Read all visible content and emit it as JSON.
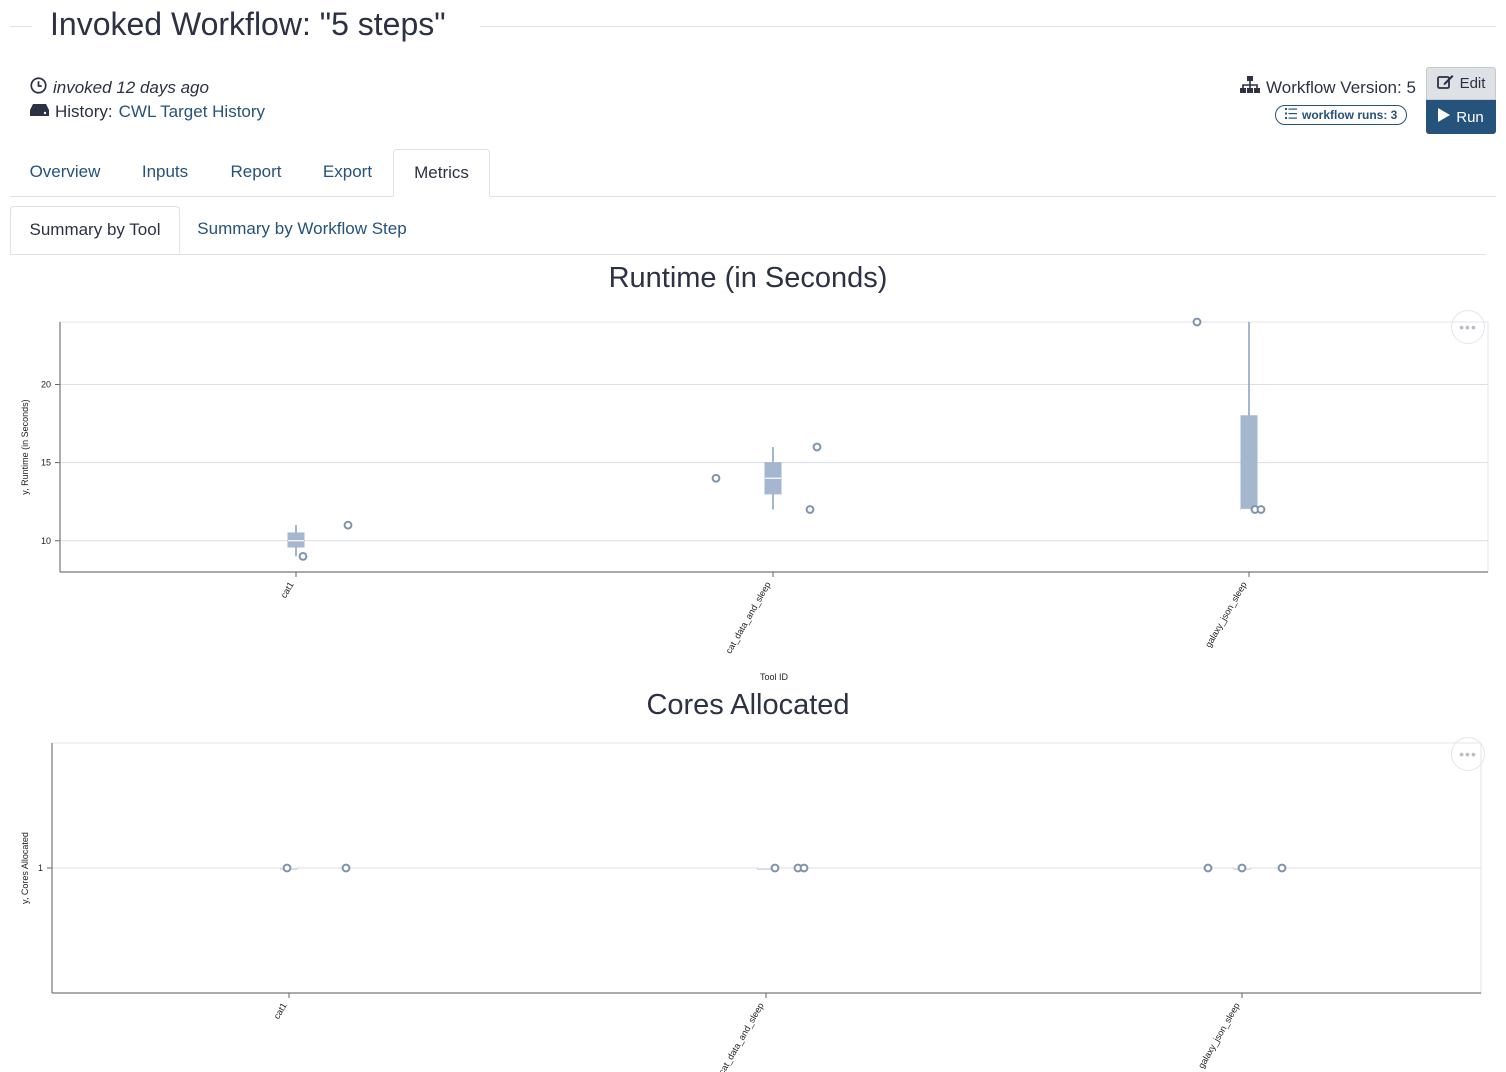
{
  "header": {
    "title": "Invoked Workflow: \"5 steps\"",
    "invoked": "invoked 12 days ago",
    "history_label": "History:",
    "history_link": "CWL Target History",
    "workflow_version": "Workflow Version: 5",
    "workflow_runs": "workflow runs: 3",
    "edit_label": "Edit",
    "run_label": "Run"
  },
  "tabs": [
    {
      "label": "Overview"
    },
    {
      "label": "Inputs"
    },
    {
      "label": "Report"
    },
    {
      "label": "Export"
    },
    {
      "label": "Metrics"
    }
  ],
  "active_tab": "Metrics",
  "subtabs": [
    {
      "label": "Summary by Tool"
    },
    {
      "label": "Summary by Workflow Step"
    }
  ],
  "active_subtab": "Summary by Tool",
  "colors": {
    "link": "#25537b",
    "box_fill": "#a5b6cf",
    "box_stroke": "#7f96b8",
    "point": "#8093ad"
  },
  "chart_data": [
    {
      "type": "boxplot",
      "title": "Runtime (in Seconds)",
      "xlabel": "Tool ID",
      "ylabel": "y, Runtime (in Seconds)",
      "categories": [
        "cat1",
        "cat_data_and_sleep",
        "galaxy_json_sleep"
      ],
      "ylim": [
        8,
        24
      ],
      "yticks": [
        10,
        15,
        20
      ],
      "grid": true,
      "boxes": [
        {
          "category": "cat1",
          "min": 9,
          "q1": 9.6,
          "median": 10,
          "q3": 10.5,
          "max": 11
        },
        {
          "category": "cat_data_and_sleep",
          "min": 12,
          "q1": 13,
          "median": 14,
          "q3": 15,
          "max": 16
        },
        {
          "category": "galaxy_json_sleep",
          "min": 12,
          "q1": 12,
          "median": 12,
          "q3": 18,
          "max": 24
        }
      ],
      "points": [
        {
          "category": "cat1",
          "values": [
            9,
            11
          ]
        },
        {
          "category": "cat_data_and_sleep",
          "values": [
            14,
            12,
            16
          ]
        },
        {
          "category": "galaxy_json_sleep",
          "values": [
            24,
            12,
            12
          ]
        }
      ]
    },
    {
      "type": "boxplot",
      "title": "Cores Allocated",
      "xlabel": "",
      "ylabel": "y, Cores Allocated",
      "categories": [
        "cat1",
        "cat_data_and_sleep",
        "galaxy_json_sleep"
      ],
      "ylim": [
        0,
        2
      ],
      "yticks": [
        1
      ],
      "grid": true,
      "boxes": [
        {
          "category": "cat1",
          "min": 1,
          "q1": 1,
          "median": 1,
          "q3": 1,
          "max": 1
        },
        {
          "category": "cat_data_and_sleep",
          "min": 1,
          "q1": 1,
          "median": 1,
          "q3": 1,
          "max": 1
        },
        {
          "category": "galaxy_json_sleep",
          "min": 1,
          "q1": 1,
          "median": 1,
          "q3": 1,
          "max": 1
        }
      ],
      "points": [
        {
          "category": "cat1",
          "values": [
            1,
            1
          ]
        },
        {
          "category": "cat_data_and_sleep",
          "values": [
            1,
            1,
            1
          ]
        },
        {
          "category": "galaxy_json_sleep",
          "values": [
            1,
            1,
            1
          ]
        }
      ]
    }
  ]
}
